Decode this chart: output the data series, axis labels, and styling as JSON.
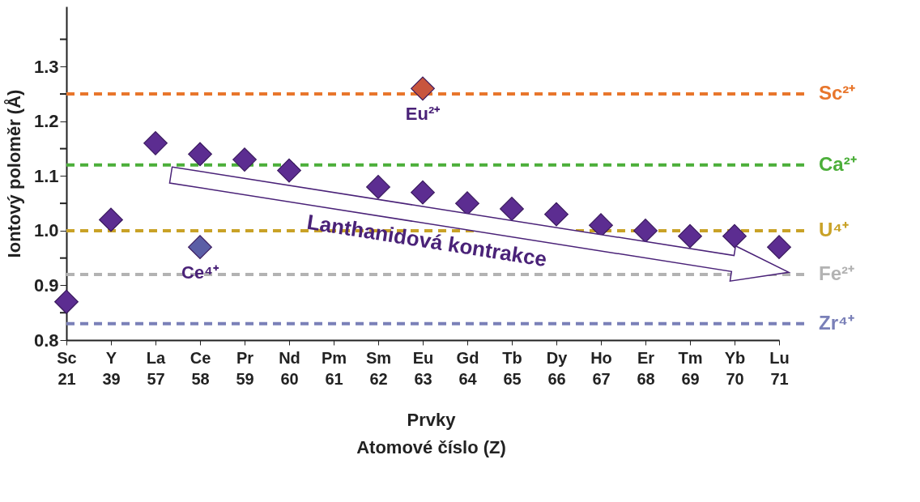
{
  "chart_data": {
    "type": "scatter",
    "xlabel": "Prvky\nAtomové číslo (Z)",
    "ylabel": "Iontový poloměr (Å)",
    "categories": [
      "Sc\n21",
      "Y\n39",
      "La\n57",
      "Ce\n58",
      "Pr\n59",
      "Nd\n60",
      "Pm\n61",
      "Sm\n62",
      "Eu\n63",
      "Gd\n64",
      "Tb\n65",
      "Dy\n66",
      "Ho\n67",
      "Er\n68",
      "Tm\n69",
      "Yb\n70",
      "Lu\n71"
    ],
    "series": [
      {
        "color": "#5c2d91",
        "values": [
          0.87,
          1.02,
          1.16,
          1.14,
          1.13,
          1.11,
          null,
          1.08,
          1.07,
          1.05,
          1.04,
          1.03,
          1.01,
          1.0,
          0.99,
          0.99,
          0.97
        ]
      },
      {
        "name": "Ce⁴⁺",
        "color": "#5b5ea6",
        "x": [
          "Ce\n58"
        ],
        "values": [
          0.97
        ]
      },
      {
        "name": "Eu²⁺",
        "color": "#c8553d",
        "x": [
          "Eu\n63"
        ],
        "values": [
          1.26
        ]
      }
    ],
    "marker": "diamond",
    "ylim": [
      0.8,
      1.41
    ],
    "yticks": [
      0.8,
      {
        "value": 0.85,
        "label": null
      },
      0.9,
      {
        "value": 0.95,
        "label": null
      },
      {
        "value": 1.0,
        "label": "1.0"
      },
      {
        "value": 1.05,
        "label": null
      },
      1.1,
      {
        "value": 1.15,
        "label": null
      },
      1.2,
      {
        "value": 1.25,
        "label": null
      },
      1.3,
      {
        "value": 1.35,
        "label": null
      }
    ],
    "ref_lines": [
      {
        "axis": "y",
        "value": 1.25,
        "label": "Sc²⁺",
        "color": "#e8762c",
        "line_style": "dashed"
      },
      {
        "axis": "y",
        "value": 1.12,
        "label": "Ca²⁺",
        "color": "#4caf3a",
        "line_style": "dashed"
      },
      {
        "axis": "y",
        "value": 1.0,
        "label": "U⁴⁺",
        "color": "#c9a227",
        "line_style": "dashed"
      },
      {
        "axis": "y",
        "value": 0.92,
        "label": "Fe²⁺",
        "color": "#b3b3b3",
        "line_style": "dashed"
      },
      {
        "axis": "y",
        "value": 0.83,
        "label": "Zr⁴⁺",
        "color": "#7a80b8",
        "line_style": "dashed"
      }
    ],
    "annotations": [
      "Lanthanidová kontrakce"
    ]
  }
}
